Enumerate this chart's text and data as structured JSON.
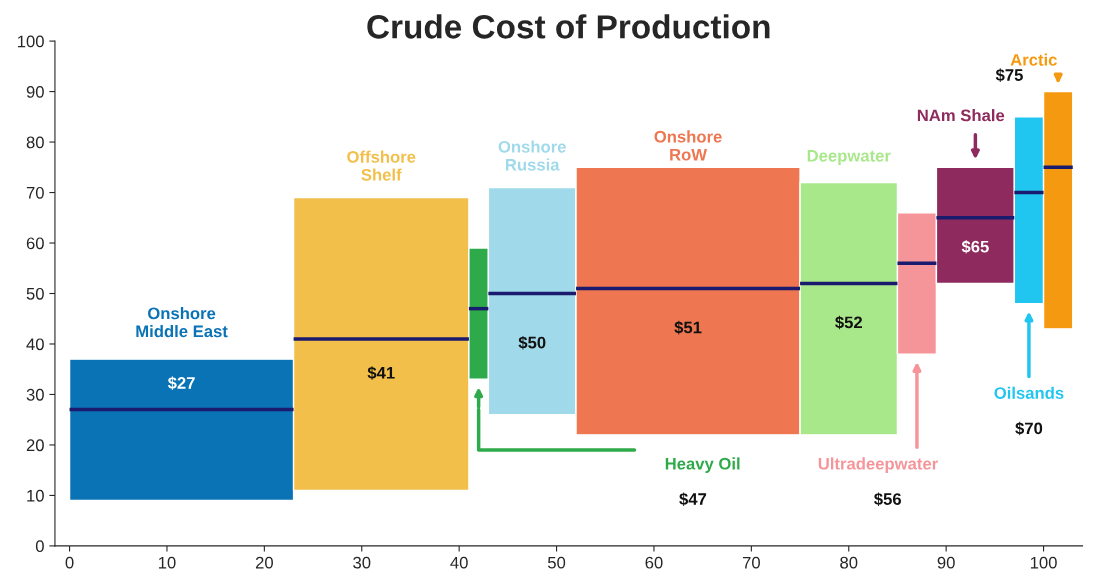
{
  "chart_data": {
    "type": "histogram",
    "title": "Crude Cost of Production",
    "bins": [
      0,
      23,
      41,
      43,
      52,
      75,
      85,
      89,
      97,
      100,
      103
    ],
    "base": [
      9,
      11,
      33,
      26,
      22,
      22,
      38,
      52,
      48,
      43
    ],
    "values": [
      28,
      58,
      26,
      45,
      53,
      50,
      28,
      23,
      37,
      47
    ],
    "colors": [
      "#0a73b6",
      "#f2bf4a",
      "#2eaa4a",
      "#9fd9ea",
      "#ee7650",
      "#a8e88a",
      "#f5959a",
      "#8e2a5e",
      "#20c6f0",
      "#f59a10"
    ],
    "series": [
      {
        "type": "line",
        "color": "#1a1a6e",
        "x": [
          0,
          23
        ],
        "values": [
          27,
          27
        ]
      },
      {
        "type": "line",
        "color": "#1a1a6e",
        "x": [
          23,
          41
        ],
        "values": [
          41,
          41
        ]
      },
      {
        "type": "line",
        "color": "#1a1a6e",
        "x": [
          41,
          43
        ],
        "values": [
          47,
          47
        ]
      },
      {
        "type": "line",
        "color": "#1a1a6e",
        "x": [
          43,
          52
        ],
        "values": [
          50,
          50
        ]
      },
      {
        "type": "line",
        "color": "#1a1a6e",
        "x": [
          52,
          75
        ],
        "values": [
          51,
          51
        ]
      },
      {
        "type": "line",
        "color": "#1a1a6e",
        "x": [
          75,
          85
        ],
        "values": [
          52,
          52
        ]
      },
      {
        "type": "line",
        "color": "#1a1a6e",
        "x": [
          85,
          89
        ],
        "values": [
          56,
          56
        ]
      },
      {
        "type": "line",
        "color": "#1a1a6e",
        "x": [
          89,
          97
        ],
        "values": [
          65,
          65
        ]
      },
      {
        "type": "line",
        "color": "#1a1a6e",
        "x": [
          97,
          100
        ],
        "values": [
          70,
          70
        ]
      },
      {
        "type": "line",
        "color": "#1a1a6e",
        "x": [
          100,
          103
        ],
        "values": [
          75,
          75
        ]
      }
    ],
    "annotations": [
      "Onshore\nMiddle East",
      "Offshore\nShelf",
      "Heavy Oil",
      "Onshore\nRussia",
      "Onshore\nRoW",
      "Deepwater",
      "Ultradeepwater",
      "NAm Shale",
      "Oilsands",
      "Arctic",
      "$27",
      "$41",
      "$47",
      "$50",
      "$51",
      "$52",
      "$56",
      "$65",
      "$70",
      "$75"
    ],
    "xlim": [
      -1.5,
      104
    ],
    "ylim": [
      0,
      100
    ],
    "xticks": [
      0,
      10,
      20,
      30,
      40,
      50,
      60,
      70,
      80,
      90,
      100
    ],
    "yticks": [
      0,
      10,
      20,
      30,
      40,
      50,
      60,
      70,
      80,
      90,
      100
    ],
    "grid": false
  }
}
